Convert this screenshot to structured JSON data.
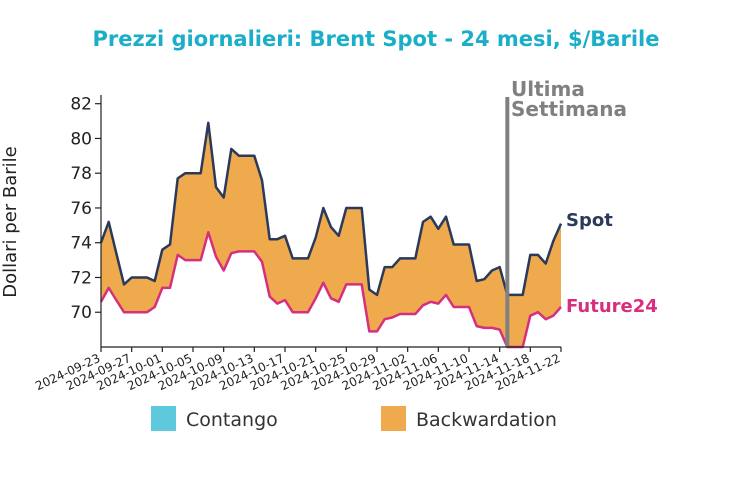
{
  "colors": {
    "title": "#1aaec8",
    "spot": "#2b3a5a",
    "future24": "#d62f7f",
    "backwardation": "#eeaa4c",
    "contango": "#5ec8dc",
    "annotation": "#808080",
    "axis": "#222222"
  },
  "chart_data": {
    "type": "area",
    "title": "Prezzi giornalieri: Brent Spot - 24 mesi, $/Barile",
    "xlabel": "",
    "ylabel": "Dollari per Barile",
    "ylim": [
      68,
      82.5
    ],
    "yticks": [
      70,
      72,
      74,
      76,
      78,
      80,
      82
    ],
    "xticks": [
      "2024-09-23",
      "2024-09-27",
      "2024-10-01",
      "2024-10-05",
      "2024-10-09",
      "2024-10-13",
      "2024-10-17",
      "2024-10-21",
      "2024-10-25",
      "2024-10-29",
      "2024-11-02",
      "2024-11-06",
      "2024-11-10",
      "2024-11-14",
      "2024-11-18",
      "2024-11-22"
    ],
    "x": [
      "2024-09-23",
      "2024-09-24",
      "2024-09-25",
      "2024-09-26",
      "2024-09-27",
      "2024-09-28",
      "2024-09-29",
      "2024-09-30",
      "2024-10-01",
      "2024-10-02",
      "2024-10-03",
      "2024-10-04",
      "2024-10-05",
      "2024-10-06",
      "2024-10-07",
      "2024-10-08",
      "2024-10-09",
      "2024-10-10",
      "2024-10-11",
      "2024-10-12",
      "2024-10-13",
      "2024-10-14",
      "2024-10-15",
      "2024-10-16",
      "2024-10-17",
      "2024-10-18",
      "2024-10-19",
      "2024-10-20",
      "2024-10-21",
      "2024-10-22",
      "2024-10-23",
      "2024-10-24",
      "2024-10-25",
      "2024-10-26",
      "2024-10-27",
      "2024-10-28",
      "2024-10-29",
      "2024-10-30",
      "2024-10-31",
      "2024-11-01",
      "2024-11-02",
      "2024-11-03",
      "2024-11-04",
      "2024-11-05",
      "2024-11-06",
      "2024-11-07",
      "2024-11-08",
      "2024-11-09",
      "2024-11-10",
      "2024-11-11",
      "2024-11-12",
      "2024-11-13",
      "2024-11-14",
      "2024-11-15",
      "2024-11-16",
      "2024-11-17",
      "2024-11-18",
      "2024-11-19",
      "2024-11-20",
      "2024-11-21",
      "2024-11-22"
    ],
    "series": [
      {
        "name": "Spot",
        "values": [
          74.0,
          75.2,
          73.4,
          71.6,
          72.0,
          72.0,
          72.0,
          71.8,
          73.6,
          73.9,
          77.7,
          78.0,
          78.0,
          78.0,
          80.9,
          77.2,
          76.6,
          79.4,
          79.0,
          79.0,
          79.0,
          77.6,
          74.2,
          74.2,
          74.4,
          73.1,
          73.1,
          73.1,
          74.3,
          76.0,
          74.9,
          74.4,
          76.0,
          76.0,
          76.0,
          71.3,
          71.0,
          72.6,
          72.6,
          73.1,
          73.1,
          73.1,
          75.2,
          75.5,
          74.8,
          75.5,
          73.9,
          73.9,
          73.9,
          71.8,
          71.9,
          72.4,
          72.6,
          71.0,
          71.0,
          71.0,
          73.3,
          73.3,
          72.8,
          74.1,
          75.1
        ]
      },
      {
        "name": "Future24",
        "values": [
          70.6,
          71.4,
          70.7,
          70.0,
          70.0,
          70.0,
          70.0,
          70.3,
          71.4,
          71.4,
          73.3,
          73.0,
          73.0,
          73.0,
          74.6,
          73.2,
          72.4,
          73.4,
          73.5,
          73.5,
          73.5,
          72.9,
          70.9,
          70.5,
          70.7,
          70.0,
          70.0,
          70.0,
          70.8,
          71.7,
          70.8,
          70.6,
          71.6,
          71.6,
          71.6,
          68.9,
          68.9,
          69.6,
          69.7,
          69.9,
          69.9,
          69.9,
          70.4,
          70.6,
          70.5,
          71.0,
          70.3,
          70.3,
          70.3,
          69.2,
          69.1,
          69.1,
          69.0,
          68.0,
          68.0,
          68.0,
          69.8,
          70.0,
          69.6,
          69.8,
          70.3
        ]
      }
    ],
    "legend": [
      {
        "label": "Contango"
      },
      {
        "label": "Backwardation"
      }
    ],
    "legend_position": "bottom",
    "series_labels": {
      "spot": "Spot",
      "future24": "Future24"
    },
    "annotation": {
      "label_line1": "Ultima",
      "label_line2": "Settimana",
      "x": "2024-11-15"
    },
    "grid": false
  }
}
